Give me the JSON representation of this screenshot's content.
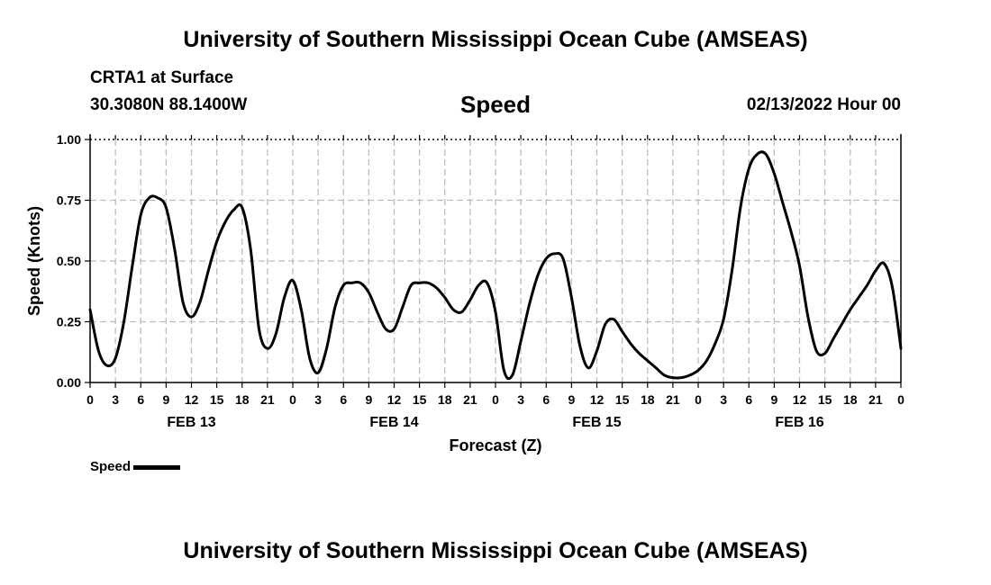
{
  "header": {
    "title": "University of Southern Mississippi Ocean Cube (AMSEAS)",
    "station": "CRTA1 at Surface",
    "coords": "30.3080N  88.1400W",
    "timestamp": "02/13/2022 Hour 00"
  },
  "footer": {
    "title": "University of Southern Mississippi Ocean Cube (AMSEAS)"
  },
  "legend": {
    "label": "Speed",
    "color": "#000000"
  },
  "chart_data": {
    "type": "line",
    "title": "Speed",
    "xlabel": "Forecast (Z)",
    "ylabel": "Speed (Knots)",
    "xlim": [
      0,
      96
    ],
    "ylim": [
      0,
      1
    ],
    "yticks": [
      "0.00",
      "0.25",
      "0.50",
      "0.75",
      "1.00"
    ],
    "ytick_values": [
      0,
      0.25,
      0.5,
      0.75,
      1
    ],
    "xticks": [
      "0",
      "3",
      "6",
      "9",
      "12",
      "15",
      "18",
      "21",
      "0",
      "3",
      "6",
      "9",
      "12",
      "15",
      "18",
      "21",
      "0",
      "3",
      "6",
      "9",
      "12",
      "15",
      "18",
      "21",
      "0",
      "3",
      "6",
      "9",
      "12",
      "15",
      "18",
      "21",
      "0"
    ],
    "day_labels": [
      {
        "label": "FEB 13",
        "hour": 12
      },
      {
        "label": "FEB 14",
        "hour": 36
      },
      {
        "label": "FEB 15",
        "hour": 60
      },
      {
        "label": "FEB 16",
        "hour": 84
      }
    ],
    "grid": true,
    "series": [
      {
        "name": "Speed",
        "color": "#000000",
        "x": [
          0,
          1,
          2,
          3,
          4,
          5,
          6,
          7,
          8,
          9,
          10,
          11,
          12,
          13,
          14,
          15,
          16,
          17,
          18,
          19,
          20,
          21,
          22,
          23,
          24,
          25,
          26,
          27,
          28,
          29,
          30,
          31,
          32,
          33,
          34,
          35,
          36,
          37,
          38,
          39,
          40,
          41,
          42,
          43,
          44,
          45,
          46,
          47,
          48,
          49,
          50,
          51,
          52,
          53,
          54,
          55,
          56,
          57,
          58,
          59,
          60,
          61,
          62,
          63,
          64,
          65,
          66,
          67,
          68,
          69,
          70,
          71,
          72,
          73,
          74,
          75,
          76,
          77,
          78,
          79,
          80,
          81,
          82,
          83,
          84,
          85,
          86,
          87,
          88,
          89,
          90,
          91,
          92,
          93,
          94,
          95,
          96
        ],
        "values": [
          0.3,
          0.13,
          0.07,
          0.1,
          0.25,
          0.48,
          0.69,
          0.76,
          0.76,
          0.72,
          0.55,
          0.33,
          0.27,
          0.33,
          0.46,
          0.58,
          0.66,
          0.71,
          0.72,
          0.55,
          0.22,
          0.14,
          0.2,
          0.35,
          0.42,
          0.3,
          0.1,
          0.04,
          0.14,
          0.31,
          0.4,
          0.41,
          0.41,
          0.37,
          0.29,
          0.22,
          0.22,
          0.31,
          0.4,
          0.41,
          0.41,
          0.39,
          0.35,
          0.3,
          0.29,
          0.34,
          0.4,
          0.41,
          0.29,
          0.05,
          0.03,
          0.17,
          0.32,
          0.44,
          0.51,
          0.53,
          0.51,
          0.35,
          0.15,
          0.06,
          0.13,
          0.24,
          0.26,
          0.21,
          0.16,
          0.12,
          0.09,
          0.06,
          0.03,
          0.02,
          0.02,
          0.03,
          0.05,
          0.09,
          0.16,
          0.26,
          0.46,
          0.72,
          0.88,
          0.94,
          0.94,
          0.86,
          0.74,
          0.62,
          0.48,
          0.27,
          0.13,
          0.12,
          0.18,
          0.24,
          0.3,
          0.35,
          0.4,
          0.46,
          0.49,
          0.39,
          0.14
        ]
      }
    ]
  }
}
